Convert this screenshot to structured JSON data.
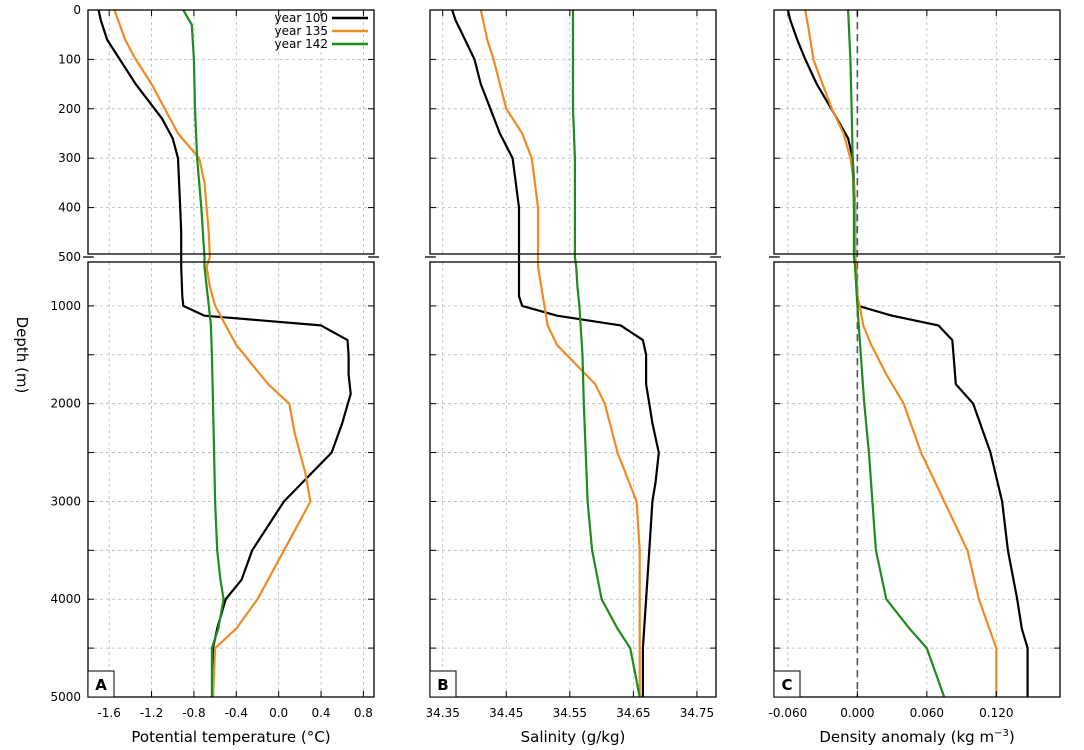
{
  "figure": {
    "ylabel": "Depth (m)",
    "colors": {
      "year100": "#000000",
      "year135": "#f08a24",
      "year142": "#1c8c1c",
      "grid": "#b8b8b8",
      "zero_line": "#555555"
    }
  },
  "chart_data": [
    {
      "type": "line",
      "panel_label": "A",
      "xlabel": "Potential temperature (°C)",
      "ylabel": "Depth (m)",
      "xlim": [
        -1.8,
        0.9
      ],
      "xticks": [
        -1.6,
        -1.2,
        -0.8,
        -0.4,
        0,
        0.4,
        0.8
      ],
      "xtick_labels": [
        "-1.6",
        "-1.2",
        "-0.8",
        "-0.4",
        "0.0",
        "0.4",
        "0.8"
      ],
      "y_upper_range": [
        0,
        500
      ],
      "y_upper_ticks": [
        0,
        100,
        200,
        300,
        400,
        500
      ],
      "y_lower_range": [
        500,
        5000
      ],
      "y_lower_ticks": [
        1000,
        2000,
        3000,
        4000,
        5000
      ],
      "grid": true,
      "legend": {
        "position": "top-right",
        "entries": [
          "year 100",
          "year 135",
          "year 142"
        ]
      },
      "series": [
        {
          "name": "year 100",
          "color": "#000000",
          "points": [
            [
              -1.7,
              0
            ],
            [
              -1.68,
              20
            ],
            [
              -1.62,
              60
            ],
            [
              -1.5,
              100
            ],
            [
              -1.35,
              150
            ],
            [
              -1.1,
              220
            ],
            [
              -1.0,
              260
            ],
            [
              -0.95,
              300
            ],
            [
              -0.94,
              350
            ],
            [
              -0.93,
              400
            ],
            [
              -0.92,
              450
            ],
            [
              -0.92,
              500
            ],
            [
              -0.92,
              600
            ],
            [
              -0.91,
              900
            ],
            [
              -0.9,
              1000
            ],
            [
              -0.7,
              1100
            ],
            [
              0.4,
              1200
            ],
            [
              0.65,
              1350
            ],
            [
              0.66,
              1500
            ],
            [
              0.66,
              1700
            ],
            [
              0.68,
              1900
            ],
            [
              0.6,
              2200
            ],
            [
              0.5,
              2500
            ],
            [
              0.05,
              3000
            ],
            [
              -0.25,
              3500
            ],
            [
              -0.35,
              3800
            ],
            [
              -0.5,
              4000
            ],
            [
              -0.58,
              4300
            ],
            [
              -0.62,
              4500
            ],
            [
              -0.62,
              5000
            ]
          ]
        },
        {
          "name": "year 135",
          "color": "#f08a24",
          "points": [
            [
              -1.55,
              0
            ],
            [
              -1.5,
              30
            ],
            [
              -1.45,
              60
            ],
            [
              -1.35,
              100
            ],
            [
              -1.2,
              150
            ],
            [
              -1.05,
              210
            ],
            [
              -0.95,
              250
            ],
            [
              -0.75,
              300
            ],
            [
              -0.7,
              350
            ],
            [
              -0.68,
              400
            ],
            [
              -0.66,
              450
            ],
            [
              -0.65,
              500
            ],
            [
              -0.68,
              600
            ],
            [
              -0.65,
              800
            ],
            [
              -0.6,
              1000
            ],
            [
              -0.5,
              1200
            ],
            [
              -0.4,
              1400
            ],
            [
              -0.1,
              1800
            ],
            [
              0.1,
              2000
            ],
            [
              0.15,
              2300
            ],
            [
              0.25,
              2700
            ],
            [
              0.3,
              3000
            ],
            [
              0.15,
              3300
            ],
            [
              0.05,
              3500
            ],
            [
              -0.1,
              3800
            ],
            [
              -0.2,
              4000
            ],
            [
              -0.4,
              4300
            ],
            [
              -0.6,
              4500
            ],
            [
              -0.62,
              5000
            ]
          ]
        },
        {
          "name": "year 142",
          "color": "#1c8c1c",
          "points": [
            [
              -0.9,
              0
            ],
            [
              -0.82,
              30
            ],
            [
              -0.8,
              100
            ],
            [
              -0.79,
              200
            ],
            [
              -0.77,
              300
            ],
            [
              -0.73,
              400
            ],
            [
              -0.7,
              500
            ],
            [
              -0.7,
              600
            ],
            [
              -0.68,
              800
            ],
            [
              -0.66,
              1000
            ],
            [
              -0.64,
              1200
            ],
            [
              -0.63,
              1500
            ],
            [
              -0.62,
              2000
            ],
            [
              -0.61,
              2500
            ],
            [
              -0.6,
              3000
            ],
            [
              -0.58,
              3500
            ],
            [
              -0.55,
              3800
            ],
            [
              -0.52,
              4000
            ],
            [
              -0.57,
              4300
            ],
            [
              -0.63,
              4500
            ],
            [
              -0.63,
              5000
            ]
          ]
        }
      ]
    },
    {
      "type": "line",
      "panel_label": "B",
      "xlabel": "Salinity (g/kg)",
      "ylabel": "",
      "xlim": [
        34.33,
        34.78
      ],
      "xticks": [
        34.35,
        34.45,
        34.55,
        34.65,
        34.75
      ],
      "xtick_labels": [
        "34.35",
        "34.45",
        "34.55",
        "34.65",
        "34.75"
      ],
      "y_upper_range": [
        0,
        500
      ],
      "y_lower_range": [
        500,
        5000
      ],
      "grid": true,
      "series": [
        {
          "name": "year 100",
          "color": "#000000",
          "points": [
            [
              34.365,
              0
            ],
            [
              34.37,
              20
            ],
            [
              34.385,
              60
            ],
            [
              34.4,
              100
            ],
            [
              34.41,
              150
            ],
            [
              34.425,
              200
            ],
            [
              34.44,
              250
            ],
            [
              34.46,
              300
            ],
            [
              34.465,
              350
            ],
            [
              34.47,
              400
            ],
            [
              34.47,
              500
            ],
            [
              34.47,
              600
            ],
            [
              34.47,
              900
            ],
            [
              34.475,
              1000
            ],
            [
              34.53,
              1100
            ],
            [
              34.63,
              1200
            ],
            [
              34.665,
              1350
            ],
            [
              34.67,
              1500
            ],
            [
              34.67,
              1800
            ],
            [
              34.675,
              2000
            ],
            [
              34.68,
              2200
            ],
            [
              34.69,
              2500
            ],
            [
              34.685,
              2800
            ],
            [
              34.68,
              3000
            ],
            [
              34.675,
              3500
            ],
            [
              34.67,
              4000
            ],
            [
              34.665,
              4500
            ],
            [
              34.665,
              5000
            ]
          ]
        },
        {
          "name": "year 135",
          "color": "#f08a24",
          "points": [
            [
              34.41,
              0
            ],
            [
              34.415,
              30
            ],
            [
              34.42,
              60
            ],
            [
              34.43,
              100
            ],
            [
              34.44,
              150
            ],
            [
              34.45,
              200
            ],
            [
              34.475,
              250
            ],
            [
              34.49,
              300
            ],
            [
              34.495,
              350
            ],
            [
              34.5,
              400
            ],
            [
              34.5,
              500
            ],
            [
              34.5,
              600
            ],
            [
              34.505,
              800
            ],
            [
              34.51,
              1000
            ],
            [
              34.515,
              1200
            ],
            [
              34.53,
              1400
            ],
            [
              34.56,
              1600
            ],
            [
              34.59,
              1800
            ],
            [
              34.605,
              2000
            ],
            [
              34.625,
              2500
            ],
            [
              34.655,
              3000
            ],
            [
              34.66,
              3500
            ],
            [
              34.66,
              4000
            ],
            [
              34.66,
              4500
            ],
            [
              34.66,
              5000
            ]
          ]
        },
        {
          "name": "year 142",
          "color": "#1c8c1c",
          "points": [
            [
              34.555,
              0
            ],
            [
              34.555,
              100
            ],
            [
              34.555,
              200
            ],
            [
              34.558,
              300
            ],
            [
              34.558,
              400
            ],
            [
              34.558,
              500
            ],
            [
              34.56,
              600
            ],
            [
              34.562,
              800
            ],
            [
              34.565,
              1000
            ],
            [
              34.567,
              1200
            ],
            [
              34.57,
              1500
            ],
            [
              34.572,
              2000
            ],
            [
              34.575,
              2500
            ],
            [
              34.578,
              3000
            ],
            [
              34.585,
              3500
            ],
            [
              34.6,
              4000
            ],
            [
              34.625,
              4300
            ],
            [
              34.645,
              4500
            ],
            [
              34.66,
              5000
            ]
          ]
        }
      ]
    },
    {
      "type": "line",
      "panel_label": "C",
      "xlabel": "Density anomaly (kg m",
      "xlabel_sup": "−3",
      "xlabel_tail": ")",
      "ylabel": "",
      "xlim": [
        -0.072,
        0.175
      ],
      "xticks": [
        -0.06,
        0,
        0.06,
        0.12
      ],
      "xtick_labels": [
        "-0.060",
        "0.000",
        "0.060",
        "0.120"
      ],
      "zero_line": true,
      "y_upper_range": [
        0,
        500
      ],
      "y_lower_range": [
        500,
        5000
      ],
      "grid": true,
      "series": [
        {
          "name": "year 100",
          "color": "#000000",
          "points": [
            [
              -0.06,
              0
            ],
            [
              -0.058,
              20
            ],
            [
              -0.052,
              60
            ],
            [
              -0.045,
              100
            ],
            [
              -0.035,
              150
            ],
            [
              -0.02,
              210
            ],
            [
              -0.008,
              260
            ],
            [
              -0.004,
              300
            ],
            [
              -0.003,
              350
            ],
            [
              -0.002,
              400
            ],
            [
              -0.002,
              500
            ],
            [
              -0.001,
              600
            ],
            [
              0,
              900
            ],
            [
              0.001,
              1000
            ],
            [
              0.03,
              1100
            ],
            [
              0.07,
              1200
            ],
            [
              0.082,
              1350
            ],
            [
              0.083,
              1500
            ],
            [
              0.085,
              1800
            ],
            [
              0.1,
              2000
            ],
            [
              0.115,
              2500
            ],
            [
              0.125,
              3000
            ],
            [
              0.13,
              3500
            ],
            [
              0.138,
              4000
            ],
            [
              0.142,
              4300
            ],
            [
              0.147,
              4500
            ],
            [
              0.147,
              5000
            ]
          ]
        },
        {
          "name": "year 135",
          "color": "#f08a24",
          "points": [
            [
              -0.045,
              0
            ],
            [
              -0.042,
              40
            ],
            [
              -0.038,
              100
            ],
            [
              -0.03,
              150
            ],
            [
              -0.022,
              200
            ],
            [
              -0.012,
              250
            ],
            [
              -0.006,
              300
            ],
            [
              -0.003,
              350
            ],
            [
              -0.002,
              400
            ],
            [
              -0.002,
              500
            ],
            [
              -0.001,
              600
            ],
            [
              0,
              900
            ],
            [
              0.002,
              1000
            ],
            [
              0.005,
              1200
            ],
            [
              0.012,
              1400
            ],
            [
              0.025,
              1700
            ],
            [
              0.04,
              2000
            ],
            [
              0.055,
              2500
            ],
            [
              0.075,
              3000
            ],
            [
              0.095,
              3500
            ],
            [
              0.105,
              4000
            ],
            [
              0.12,
              4500
            ],
            [
              0.12,
              5000
            ]
          ]
        },
        {
          "name": "year 142",
          "color": "#1c8c1c",
          "points": [
            [
              -0.008,
              0
            ],
            [
              -0.006,
              100
            ],
            [
              -0.005,
              200
            ],
            [
              -0.004,
              300
            ],
            [
              -0.003,
              400
            ],
            [
              -0.003,
              500
            ],
            [
              -0.002,
              600
            ],
            [
              -0.001,
              800
            ],
            [
              0,
              1000
            ],
            [
              0.003,
              1500
            ],
            [
              0.006,
              2000
            ],
            [
              0.01,
              2500
            ],
            [
              0.013,
              3000
            ],
            [
              0.016,
              3500
            ],
            [
              0.025,
              4000
            ],
            [
              0.045,
              4300
            ],
            [
              0.06,
              4500
            ],
            [
              0.075,
              5000
            ]
          ]
        }
      ]
    }
  ]
}
